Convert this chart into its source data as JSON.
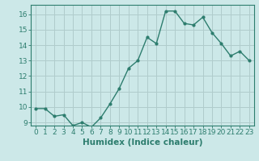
{
  "x": [
    0,
    1,
    2,
    3,
    4,
    5,
    6,
    7,
    8,
    9,
    10,
    11,
    12,
    13,
    14,
    15,
    16,
    17,
    18,
    19,
    20,
    21,
    22,
    23
  ],
  "y": [
    9.9,
    9.9,
    9.4,
    9.5,
    8.8,
    9.0,
    8.7,
    9.3,
    10.2,
    11.2,
    12.5,
    13.0,
    14.5,
    14.1,
    16.2,
    16.2,
    15.4,
    15.3,
    15.8,
    14.8,
    14.1,
    13.3,
    13.6,
    13.0
  ],
  "line_color": "#2d7d6e",
  "marker": "o",
  "marker_size": 2,
  "bg_color": "#cce8e8",
  "grid_color": "#b0cccc",
  "axis_color": "#2d7d6e",
  "xlabel": "Humidex (Indice chaleur)",
  "ylim": [
    8.8,
    16.6
  ],
  "xlim": [
    -0.5,
    23.5
  ],
  "yticks": [
    9,
    10,
    11,
    12,
    13,
    14,
    15,
    16
  ],
  "xticks": [
    0,
    1,
    2,
    3,
    4,
    5,
    6,
    7,
    8,
    9,
    10,
    11,
    12,
    13,
    14,
    15,
    16,
    17,
    18,
    19,
    20,
    21,
    22,
    23
  ],
  "tick_fontsize": 6.5,
  "label_fontsize": 7.5
}
